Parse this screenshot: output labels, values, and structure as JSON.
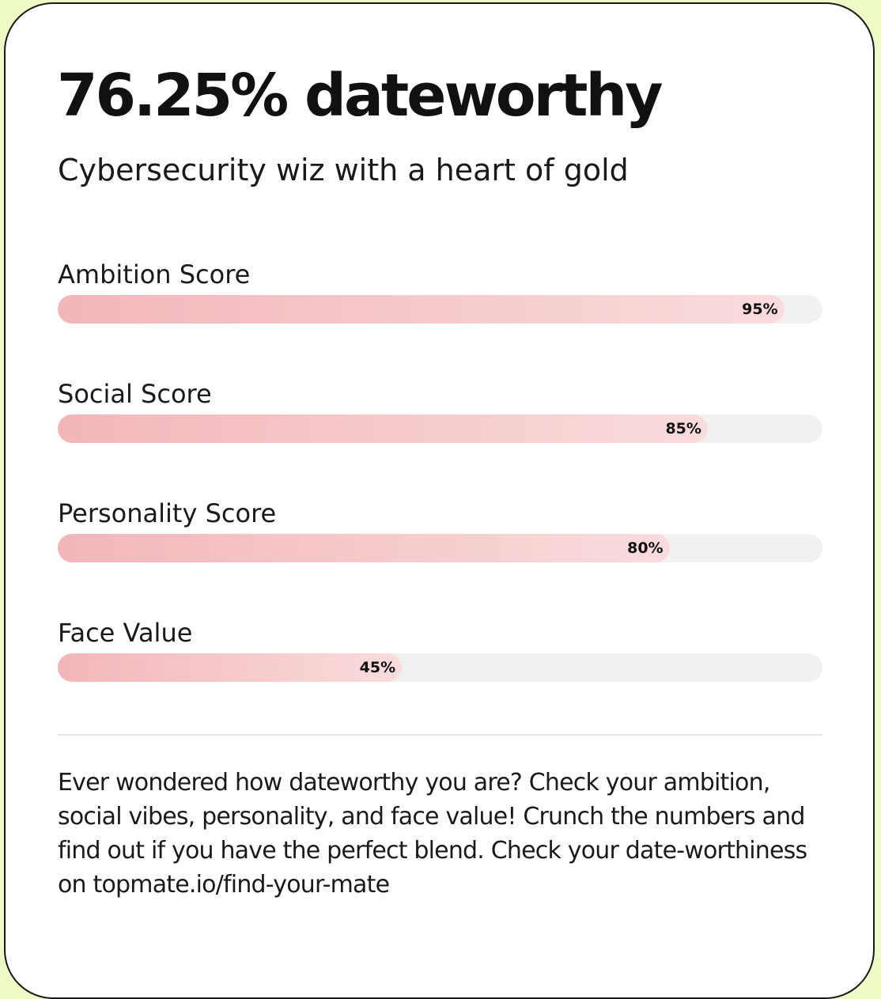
{
  "chart_data": {
    "type": "bar",
    "orientation": "horizontal",
    "title": "76.25% dateworthy",
    "subtitle": "Cybersecurity wiz with a heart of gold",
    "categories": [
      "Ambition Score",
      "Social Score",
      "Personality Score",
      "Face Value"
    ],
    "values": [
      95,
      85,
      80,
      45
    ],
    "value_labels": [
      "95%",
      "85%",
      "80%",
      "45%"
    ],
    "xlim": [
      0,
      100
    ],
    "colors": [
      "#f3b6ba",
      "#f9dcdc"
    ],
    "track_color": "#f1f1f1"
  },
  "description": "Ever wondered how dateworthy you are? Check your ambition, social vibes, personality, and face value! Crunch the numbers and find out if you have the perfect blend. Check your date-worthiness on topmate.io/find-your-mate"
}
